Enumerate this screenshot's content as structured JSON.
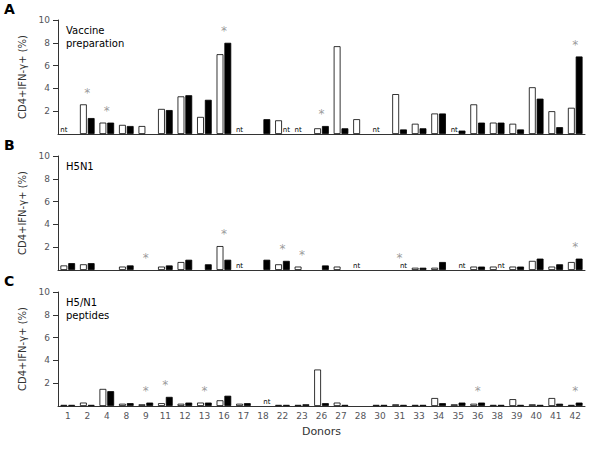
{
  "chart_data": [
    {
      "type": "bar",
      "title": "A",
      "subtitle": "Vaccine\npreparation",
      "categories": [
        "1",
        "2",
        "4",
        "8",
        "9",
        "11",
        "12",
        "13",
        "16",
        "17",
        "18",
        "22",
        "23",
        "26",
        "27",
        "28",
        "30",
        "31",
        "33",
        "34",
        "35",
        "36",
        "38",
        "39",
        "40",
        "41",
        "42"
      ],
      "series": [
        {
          "color": "white",
          "values": [
            null,
            2.6,
            1.0,
            0.8,
            0.7,
            2.2,
            3.3,
            1.5,
            7.0,
            null,
            0,
            1.2,
            null,
            0.5,
            7.7,
            1.3,
            null,
            3.5,
            0.9,
            1.8,
            null,
            2.6,
            1.0,
            0.9,
            4.1,
            2.0,
            2.3
          ]
        },
        {
          "color": "black",
          "values": [
            0,
            1.4,
            1.0,
            0.7,
            0,
            2.1,
            3.4,
            3.0,
            8.0,
            0,
            1.3,
            null,
            0,
            0.7,
            0.5,
            0,
            0,
            0.4,
            0.5,
            1.8,
            0.3,
            1.0,
            1.0,
            0.4,
            3.1,
            0.6,
            6.8
          ]
        }
      ],
      "ylabel": "CD4+IFN-γ+ (%)",
      "ylim": [
        0,
        10
      ],
      "yticks": [
        2,
        4,
        6,
        8,
        10
      ],
      "grid": false,
      "tick_labels": "y",
      "annotations": [
        {
          "text": "nt",
          "x": "1",
          "series": 0
        },
        {
          "text": "nt",
          "x": "17",
          "series": 0
        },
        {
          "text": "nt",
          "x": "23",
          "series": 0
        },
        {
          "text": "nt",
          "x": "30",
          "series": 0
        },
        {
          "text": "nt",
          "x": "35",
          "series": 0
        },
        {
          "text": "nt",
          "x": "22",
          "series": 1
        },
        {
          "text": "*",
          "x": "2",
          "y": 3.1
        },
        {
          "text": "*",
          "x": "4",
          "y": 1.5
        },
        {
          "text": "*",
          "x": "16",
          "y": 8.5
        },
        {
          "text": "*",
          "x": "26",
          "y": 1.2
        },
        {
          "text": "*",
          "x": "42",
          "y": 7.3
        }
      ]
    },
    {
      "type": "bar",
      "title": "B",
      "subtitle": "H5N1",
      "categories": [
        "1",
        "2",
        "4",
        "8",
        "9",
        "11",
        "12",
        "13",
        "16",
        "17",
        "18",
        "22",
        "23",
        "26",
        "27",
        "28",
        "30",
        "31",
        "33",
        "34",
        "35",
        "36",
        "38",
        "39",
        "40",
        "41",
        "42"
      ],
      "series": [
        {
          "color": "white",
          "values": [
            0.4,
            0.5,
            0,
            0.3,
            0,
            0.3,
            0.7,
            0,
            2.1,
            null,
            0,
            0.5,
            0.3,
            0,
            0.3,
            null,
            0,
            0,
            0.2,
            0.2,
            0,
            0.3,
            0.3,
            0.3,
            0.8,
            0.3,
            0.7
          ]
        },
        {
          "color": "black",
          "values": [
            0.6,
            0.6,
            0,
            0.4,
            0,
            0.4,
            0.9,
            0.5,
            0.9,
            0,
            0.9,
            0.8,
            0,
            0.4,
            0,
            0,
            0,
            null,
            0.2,
            0.7,
            null,
            0.3,
            null,
            0.3,
            1.0,
            0.5,
            1.0
          ]
        }
      ],
      "ylabel": "CD4+IFN-γ+ (%)",
      "ylim": [
        0,
        10
      ],
      "yticks": [
        2,
        4,
        6,
        8,
        10
      ],
      "grid": false,
      "tick_labels": "y",
      "annotations": [
        {
          "text": "nt",
          "x": "17",
          "series": 0
        },
        {
          "text": "nt",
          "x": "28",
          "series": 0
        },
        {
          "text": "nt",
          "x": "31",
          "series": 1
        },
        {
          "text": "nt",
          "x": "35",
          "series": 1
        },
        {
          "text": "nt",
          "x": "38",
          "series": 1
        },
        {
          "text": "*",
          "x": "9",
          "y": 0.5
        },
        {
          "text": "*",
          "x": "16",
          "y": 2.6
        },
        {
          "text": "*",
          "x": "22",
          "y": 1.3
        },
        {
          "text": "*",
          "x": "23",
          "y": 0.8
        },
        {
          "text": "*",
          "x": "31",
          "y": 0.5
        },
        {
          "text": "*",
          "x": "42",
          "y": 1.5
        }
      ]
    },
    {
      "type": "bar",
      "title": "C",
      "subtitle": "H5/N1\npeptides",
      "categories": [
        "1",
        "2",
        "4",
        "8",
        "9",
        "11",
        "12",
        "13",
        "16",
        "17",
        "18",
        "22",
        "23",
        "26",
        "27",
        "28",
        "30",
        "31",
        "33",
        "34",
        "35",
        "36",
        "38",
        "39",
        "40",
        "41",
        "42"
      ],
      "series": [
        {
          "color": "white",
          "values": [
            0.1,
            0.3,
            1.5,
            0.2,
            0.15,
            0.25,
            0.2,
            0.3,
            0.5,
            0.2,
            0,
            0.1,
            0.1,
            3.2,
            0.3,
            0,
            0.1,
            0.15,
            0.1,
            0.7,
            0.15,
            0.2,
            0.1,
            0.6,
            0.15,
            0.7,
            0.1
          ]
        },
        {
          "color": "black",
          "values": [
            0.1,
            0.1,
            1.3,
            0.25,
            0.3,
            0.8,
            0.3,
            0.3,
            0.9,
            0.25,
            null,
            0.1,
            0.15,
            0.25,
            0.1,
            0,
            0.1,
            0.1,
            0.1,
            0.25,
            0.3,
            0.3,
            0.1,
            0.1,
            0.1,
            0.2,
            0.3
          ]
        }
      ],
      "xlabel": "Donors",
      "ylabel": "CD4+IFN-γ+ (%)",
      "ylim": [
        0,
        10
      ],
      "yticks": [
        2,
        4,
        6,
        8,
        10
      ],
      "grid": false,
      "annotations": [
        {
          "text": "nt",
          "x": "18",
          "series": 1
        },
        {
          "text": "*",
          "x": "9",
          "y": 0.8
        },
        {
          "text": "*",
          "x": "11",
          "y": 1.3
        },
        {
          "text": "*",
          "x": "13",
          "y": 0.8
        },
        {
          "text": "*",
          "x": "36",
          "y": 0.8
        },
        {
          "text": "*",
          "x": "42",
          "y": 0.8
        }
      ]
    }
  ]
}
